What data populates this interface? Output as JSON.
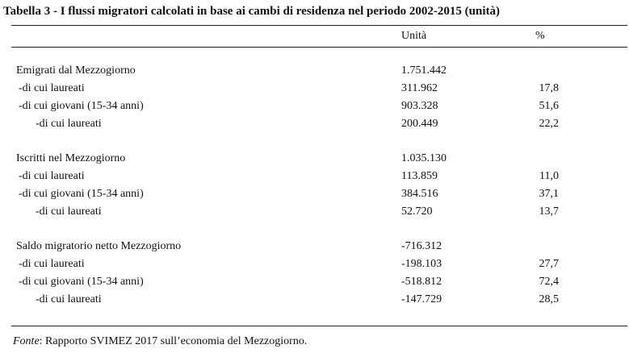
{
  "title": "Tabella 3 - I flussi migratori calcolati in base ai cambi di residenza nel periodo 2002-2015 (unità)",
  "headers": {
    "unita": "Unità",
    "pct": "%"
  },
  "rows": [
    {
      "label": "Emigrati dal Mezzogiorno",
      "level": 0,
      "value": "1.751.442",
      "pct": ""
    },
    {
      "label": "-di cui laureati",
      "level": 1,
      "value": "311.962",
      "pct": "17,8"
    },
    {
      "label": "-di cui giovani (15-34 anni)",
      "level": 1,
      "value": "903.328",
      "pct": "51,6"
    },
    {
      "label": "-di cui laureati",
      "level": 2,
      "value": "200.449",
      "pct": "22,2"
    },
    {
      "label": "Iscritti nel Mezzogiorno",
      "level": 0,
      "value": "1.035.130",
      "pct": ""
    },
    {
      "label": "-di cui laureati",
      "level": 1,
      "value": "113.859",
      "pct": "11,0"
    },
    {
      "label": "-di cui giovani (15-34 anni)",
      "level": 1,
      "value": "384.516",
      "pct": "37,1"
    },
    {
      "label": "-di cui laureati",
      "level": 2,
      "value": "52.720",
      "pct": "13,7"
    },
    {
      "label": "Saldo migratorio netto Mezzogiorno",
      "level": 0,
      "value": "-716.312",
      "pct": ""
    },
    {
      "label": "-di cui laureati",
      "level": 1,
      "value": "-198.103",
      "pct": "27,7"
    },
    {
      "label": "-di cui giovani (15-34 anni)",
      "level": 1,
      "value": "-518.812",
      "pct": "72,4"
    },
    {
      "label": "-di cui laureati",
      "level": 2,
      "value": "-147.729",
      "pct": "28,5"
    }
  ],
  "footer": {
    "source_label": "Fonte",
    "source_text": ": Rapporto SVIMEZ 2017 sull’economia del Mezzogiorno."
  }
}
